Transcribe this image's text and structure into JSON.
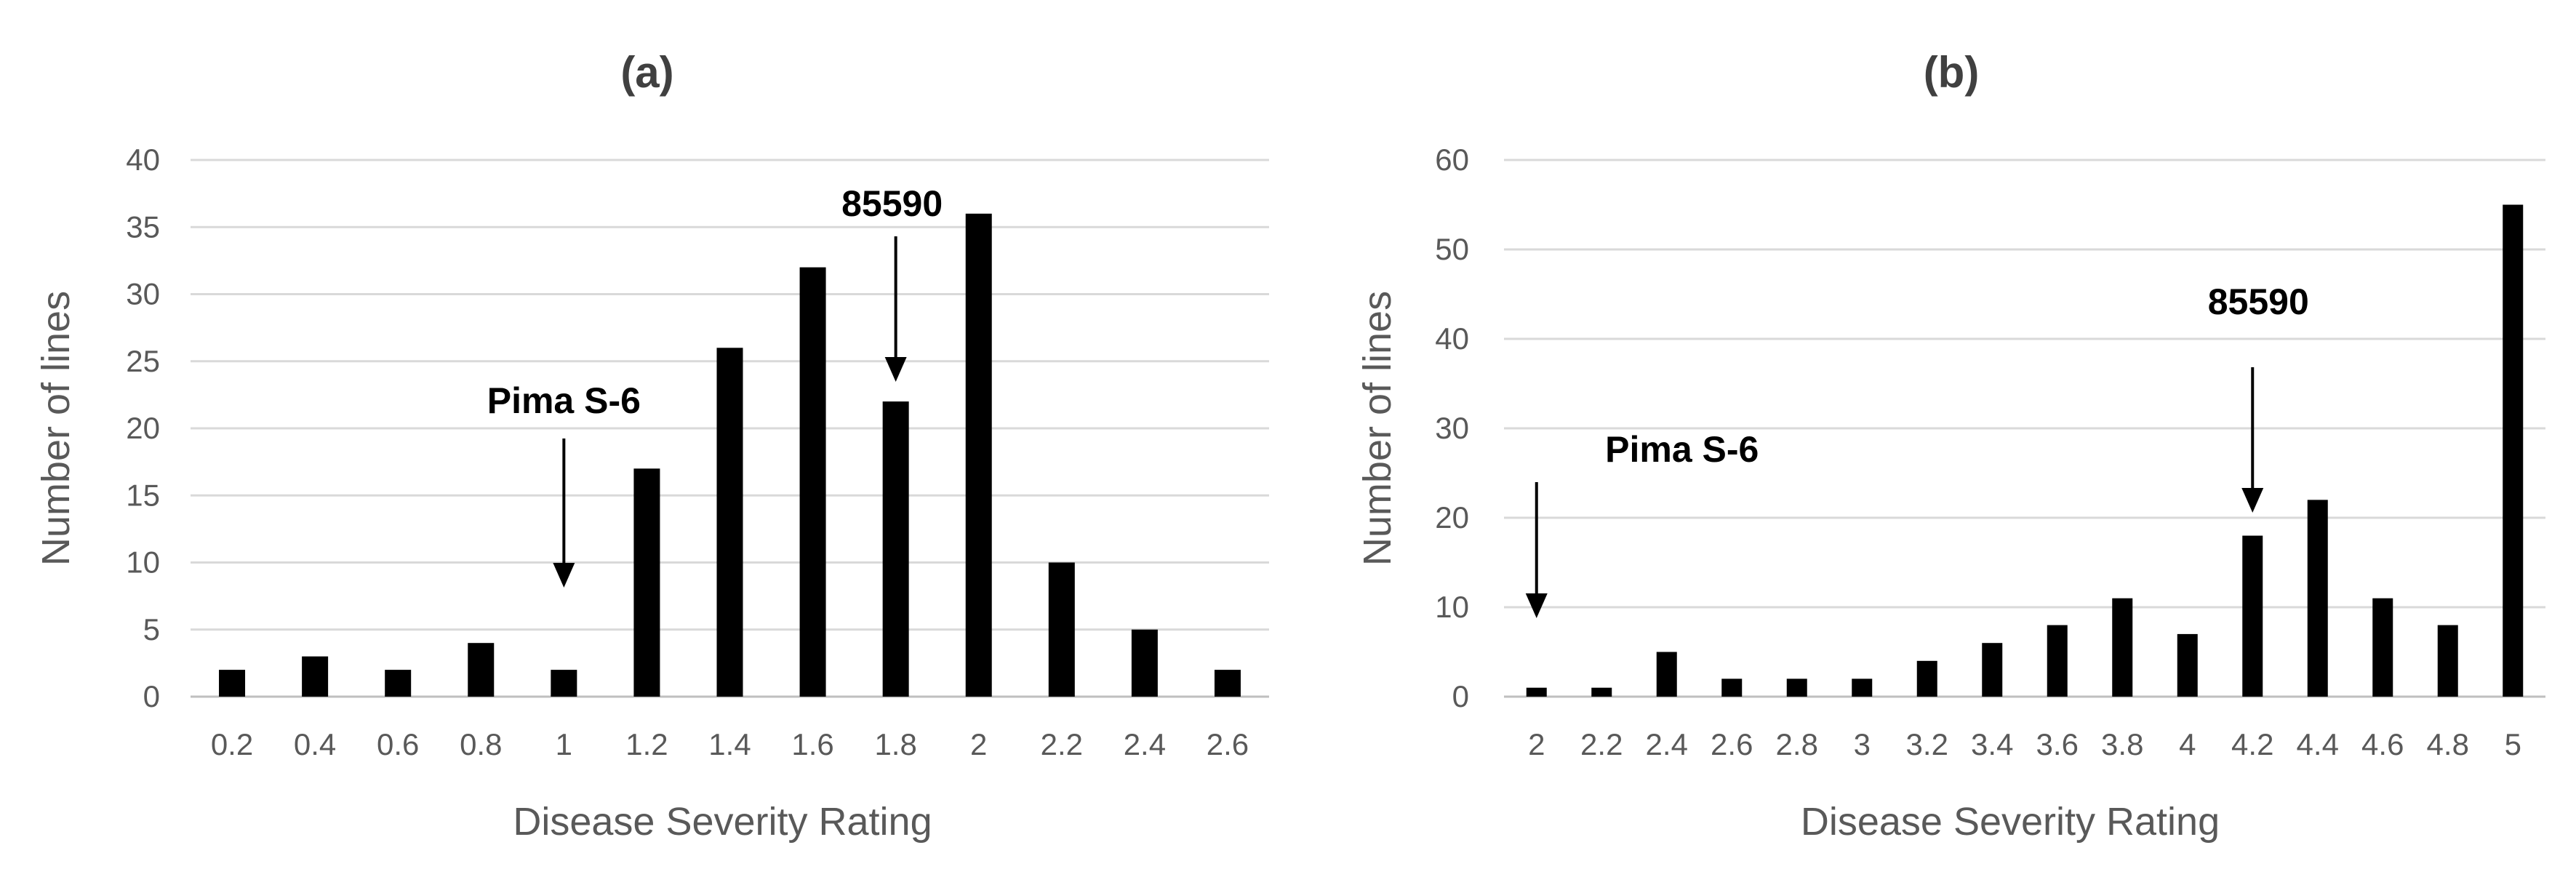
{
  "chart_data": [
    {
      "type": "bar",
      "title": "(a)",
      "xlabel": "Disease Severity Rating",
      "ylabel": "Number of lines",
      "ylim": [
        0,
        40
      ],
      "yticks": [
        0,
        5,
        10,
        15,
        20,
        25,
        30,
        35,
        40
      ],
      "grid": true,
      "categories": [
        "0.2",
        "0.4",
        "0.6",
        "0.8",
        "1",
        "1.2",
        "1.4",
        "1.6",
        "1.8",
        "2",
        "2.2",
        "2.4",
        "2.6"
      ],
      "values": [
        2,
        3,
        2,
        4,
        2,
        17,
        26,
        32,
        22,
        36,
        10,
        5,
        2
      ],
      "annotations": [
        {
          "text": "Pima S-6",
          "category": "1"
        },
        {
          "text": "85590",
          "category": "1.8"
        }
      ]
    },
    {
      "type": "bar",
      "title": "(b)",
      "xlabel": "Disease Severity Rating",
      "ylabel": "Number of lines",
      "ylim": [
        0,
        60
      ],
      "yticks": [
        0,
        10,
        20,
        30,
        40,
        50,
        60
      ],
      "grid": true,
      "categories": [
        "2",
        "2.2",
        "2.4",
        "2.6",
        "2.8",
        "3",
        "3.2",
        "3.4",
        "3.6",
        "3.8",
        "4",
        "4.2",
        "4.4",
        "4.6",
        "4.8",
        "5"
      ],
      "values": [
        1,
        1,
        5,
        2,
        2,
        2,
        4,
        6,
        8,
        11,
        7,
        18,
        22,
        11,
        8,
        55
      ],
      "annotations": [
        {
          "text": "Pima S-6",
          "category": "2"
        },
        {
          "text": "85590",
          "category": "4.2"
        }
      ]
    }
  ]
}
